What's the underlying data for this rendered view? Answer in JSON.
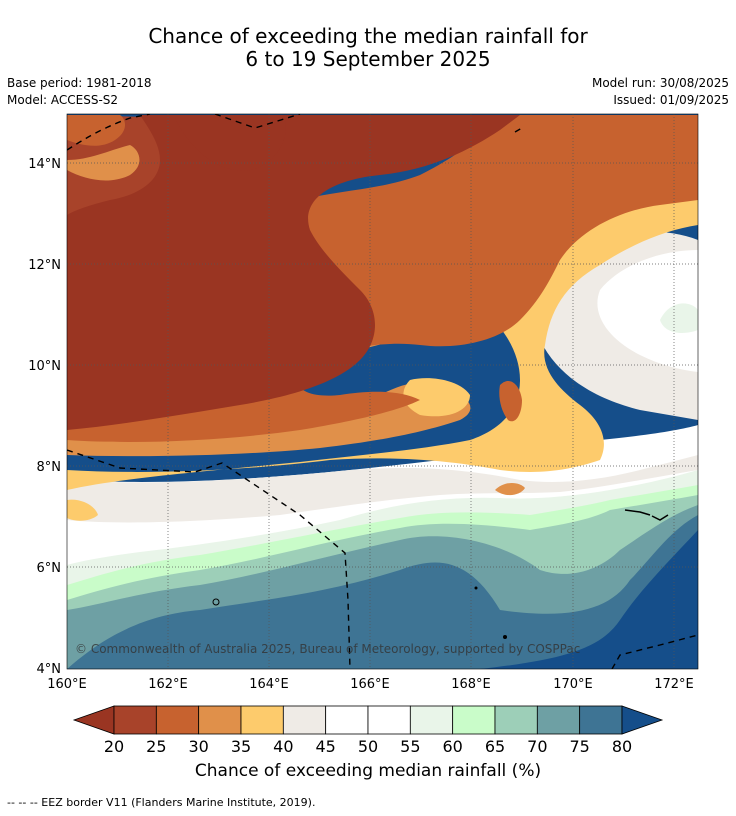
{
  "title_line1": "Chance of exceeding the median rainfall for",
  "title_line2": "6 to 19 September 2025",
  "base_period": "Base period: 1981-2018",
  "model": "Model: ACCESS-S2",
  "model_run": "Model run: 30/08/2025",
  "issued": "Issued: 01/09/2025",
  "copyright": "© Commonwealth of Australia 2025, Bureau of Meteorology, supported by COSPPac",
  "lat_labels": [
    "14°N",
    "12°N",
    "10°N",
    "8°N",
    "6°N",
    "4°N"
  ],
  "lon_labels": [
    "160°E",
    "162°E",
    "164°E",
    "166°E",
    "168°E",
    "170°E",
    "172°E"
  ],
  "colorbar": {
    "ticks": [
      "20",
      "25",
      "30",
      "35",
      "40",
      "45",
      "50",
      "55",
      "60",
      "65",
      "70",
      "75",
      "80"
    ],
    "colors": [
      "#a8432a",
      "#c7622f",
      "#e0904a",
      "#fdcb6c",
      "#efebe6",
      "#ffffff",
      "#ffffff",
      "#e9f5e9",
      "#c9fcc9",
      "#9dcfb8",
      "#6ea0a4",
      "#3e7494"
    ],
    "under_color": "#9a3522",
    "over_color": "#154e8a",
    "title": "Chance of exceeding median rainfall (%)"
  },
  "legend_footer": "--  --  -- EEZ border V11 (Flanders Marine Institute, 2019)."
}
